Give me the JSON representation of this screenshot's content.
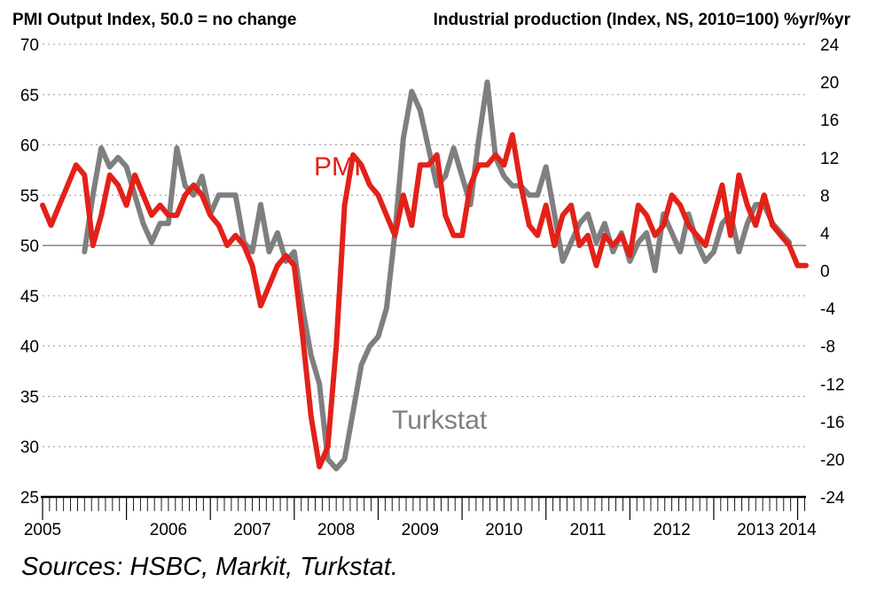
{
  "chart_data": {
    "type": "line",
    "title_left": "PMI Output Index, 50.0 = no change",
    "title_right": "Industrial production (Index, NS, 2010=100) %yr/%yr",
    "x_tick_labels": [
      "2005",
      "2006",
      "2007",
      "2008",
      "2009",
      "2010",
      "2011",
      "2012",
      "2013",
      "2014"
    ],
    "x_range": [
      2005.0,
      2014.1
    ],
    "y_left": {
      "range": [
        25,
        70
      ],
      "ticks": [
        25,
        30,
        35,
        40,
        45,
        50,
        55,
        60,
        65,
        70
      ]
    },
    "y_right": {
      "range": [
        -24,
        24
      ],
      "ticks": [
        -24,
        -20,
        -16,
        -12,
        -8,
        -4,
        0,
        4,
        8,
        12,
        16,
        20,
        24
      ]
    },
    "grid": "dotted horizontal",
    "reference_line": 50,
    "series": [
      {
        "name": "PMI",
        "axis": "left",
        "color": "#e32119",
        "x": [
          2005.0,
          2005.1,
          2005.2,
          2005.3,
          2005.4,
          2005.5,
          2005.6,
          2005.7,
          2005.8,
          2005.9,
          2006.0,
          2006.1,
          2006.2,
          2006.3,
          2006.4,
          2006.5,
          2006.6,
          2006.7,
          2006.8,
          2006.9,
          2007.0,
          2007.1,
          2007.2,
          2007.3,
          2007.4,
          2007.5,
          2007.6,
          2007.7,
          2007.8,
          2007.9,
          2008.0,
          2008.1,
          2008.2,
          2008.3,
          2008.4,
          2008.5,
          2008.6,
          2008.7,
          2008.8,
          2008.9,
          2009.0,
          2009.1,
          2009.2,
          2009.3,
          2009.4,
          2009.5,
          2009.6,
          2009.7,
          2009.8,
          2009.9,
          2010.0,
          2010.1,
          2010.2,
          2010.3,
          2010.4,
          2010.5,
          2010.6,
          2010.7,
          2010.8,
          2010.9,
          2011.0,
          2011.1,
          2011.2,
          2011.3,
          2011.4,
          2011.5,
          2011.6,
          2011.7,
          2011.8,
          2011.9,
          2012.0,
          2012.1,
          2012.2,
          2012.3,
          2012.4,
          2012.5,
          2012.6,
          2012.7,
          2012.8,
          2012.9,
          2013.0,
          2013.1,
          2013.2,
          2013.3,
          2013.4,
          2013.5,
          2013.6,
          2013.7,
          2013.8,
          2013.9,
          2014.0,
          2014.1
        ],
        "values": [
          54,
          52,
          54,
          56,
          58,
          57,
          50,
          53,
          57,
          56,
          54,
          57,
          55,
          53,
          54,
          53,
          53,
          55,
          56,
          55,
          53,
          52,
          50,
          51,
          50,
          48,
          44,
          46,
          48,
          49,
          48,
          41,
          33,
          28,
          30,
          40,
          54,
          59,
          58,
          56,
          55,
          53,
          51,
          55,
          52,
          58,
          58,
          59,
          53,
          51,
          51,
          56,
          58,
          58,
          59,
          58,
          61,
          56,
          52,
          51,
          54,
          50,
          53,
          54,
          50,
          51,
          48,
          51,
          50,
          51,
          49,
          54,
          53,
          51,
          52,
          55,
          54,
          52,
          51,
          50,
          53,
          56,
          51,
          57,
          54,
          52,
          55,
          52,
          51,
          50,
          48,
          48
        ]
      },
      {
        "name": "Turkstat",
        "axis": "right",
        "color": "#7f7f7f",
        "x": [
          2005.5,
          2005.6,
          2005.7,
          2005.8,
          2005.9,
          2006.0,
          2006.1,
          2006.2,
          2006.3,
          2006.4,
          2006.5,
          2006.6,
          2006.7,
          2006.8,
          2006.9,
          2007.0,
          2007.1,
          2007.2,
          2007.3,
          2007.4,
          2007.5,
          2007.6,
          2007.7,
          2007.8,
          2007.9,
          2008.0,
          2008.1,
          2008.2,
          2008.3,
          2008.4,
          2008.5,
          2008.6,
          2008.7,
          2008.8,
          2008.9,
          2009.0,
          2009.1,
          2009.2,
          2009.3,
          2009.4,
          2009.5,
          2009.6,
          2009.7,
          2009.8,
          2009.9,
          2010.0,
          2010.1,
          2010.2,
          2010.3,
          2010.4,
          2010.5,
          2010.6,
          2010.7,
          2010.8,
          2010.9,
          2011.0,
          2011.1,
          2011.2,
          2011.3,
          2011.4,
          2011.5,
          2011.6,
          2011.7,
          2011.8,
          2011.9,
          2012.0,
          2012.1,
          2012.2,
          2012.3,
          2012.4,
          2012.5,
          2012.6,
          2012.7,
          2012.8,
          2012.9,
          2013.0,
          2013.1,
          2013.2,
          2013.3,
          2013.4,
          2013.5,
          2013.6,
          2013.7,
          2013.8,
          2013.9
        ],
        "values": [
          2,
          8,
          13,
          11,
          12,
          11,
          8,
          5,
          3,
          5,
          5,
          13,
          9,
          8,
          10,
          6,
          8,
          8,
          8,
          3,
          2,
          7,
          2,
          4,
          1,
          2,
          -4,
          -9,
          -12,
          -20,
          -21,
          -20,
          -15,
          -10,
          -8,
          -7,
          -4,
          4,
          14,
          19,
          17,
          13,
          9,
          10,
          13,
          10,
          7,
          14,
          20,
          12,
          10,
          9,
          9,
          8,
          8,
          11,
          6,
          1,
          3,
          5,
          6,
          3,
          5,
          2,
          4,
          1,
          3,
          4,
          0,
          6,
          4,
          2,
          6,
          3,
          1,
          2,
          5,
          6,
          2,
          5,
          7,
          7,
          5,
          4,
          3
        ]
      }
    ],
    "annotations": [
      {
        "text": "PMI",
        "color": "#e32119"
      },
      {
        "text": "Turkstat",
        "color": "#7f7f7f"
      }
    ]
  },
  "source_note": "Sources: HSBC, Markit, Turkstat."
}
